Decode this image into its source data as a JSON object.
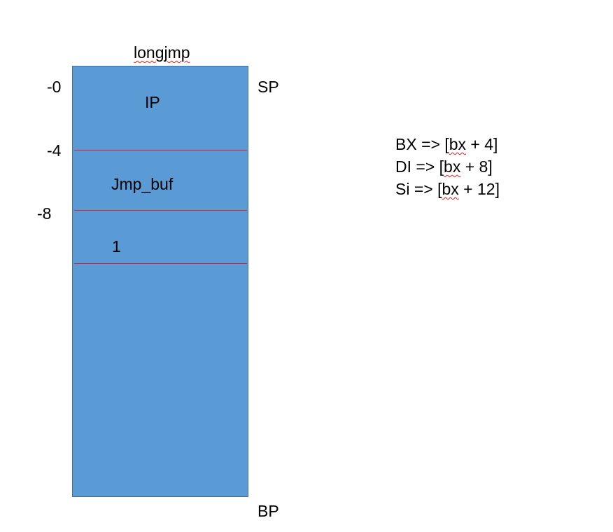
{
  "title": {
    "text": "longjmp",
    "spellcheck": true
  },
  "offsets": [
    "-0",
    "-4",
    "-8"
  ],
  "pointers": {
    "top": "SP",
    "bottom": "BP"
  },
  "cells": [
    "IP",
    "Jmp_buf",
    "1"
  ],
  "registers": [
    {
      "pre": "BX => [",
      "word": "bx",
      "post": " + 4]"
    },
    {
      "pre": "DI => [",
      "word": "bx",
      "post": " + 8]"
    },
    {
      "pre": "Si => [",
      "word": "bx",
      "post": " + 12]"
    }
  ],
  "colors": {
    "stack_fill": "#5b9bd5",
    "stack_border": "#41719c",
    "divider": "#e02020",
    "spellcheck_squiggle": "#e0201b"
  }
}
